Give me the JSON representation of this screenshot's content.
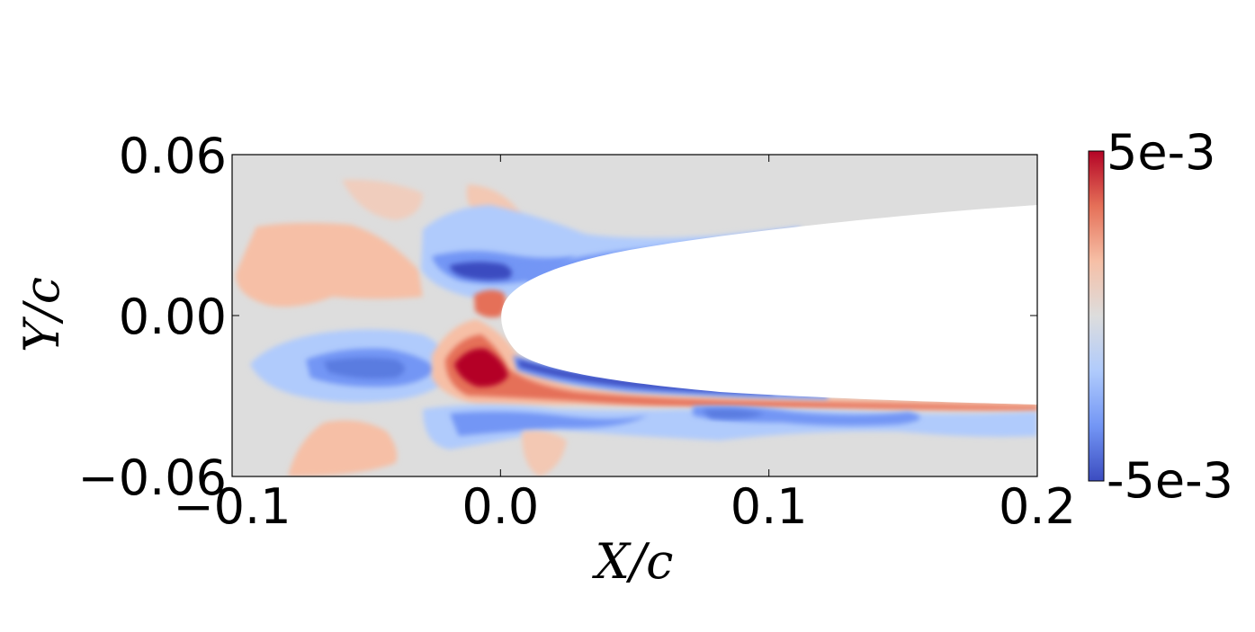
{
  "chart_data": {
    "type": "heatmap",
    "xlabel": "X/c",
    "ylabel": "Y/c",
    "xlim": [
      -0.1,
      0.2
    ],
    "ylim": [
      -0.06,
      0.06
    ],
    "x_ticks": [
      -0.1,
      0.0,
      0.1,
      0.2
    ],
    "x_tick_labels": [
      "−0.1",
      "0.0",
      "0.1",
      "0.2"
    ],
    "y_ticks": [
      0.06,
      0.0,
      -0.06
    ],
    "y_tick_labels": [
      "0.06",
      "0.00",
      "−0.06"
    ],
    "colorbar": {
      "min": -0.005,
      "max": 0.005,
      "min_label": "-5e-3",
      "max_label": "5e-3",
      "colormap": "coolwarm",
      "colors": [
        "#3b4cc0",
        "#7396f5",
        "#b0cbfc",
        "#dddddd",
        "#f6bfa6",
        "#e57058",
        "#b40426"
      ]
    },
    "background_color": "#dddddd",
    "airfoil_color": "#ffffff",
    "grid": false,
    "regions": [
      {
        "x": -0.065,
        "y": 0.02,
        "value": 0.0022
      },
      {
        "x": -0.045,
        "y": 0.022,
        "value": 0.0015
      },
      {
        "x": -0.025,
        "y": 0.025,
        "value": -0.0025
      },
      {
        "x": -0.01,
        "y": 0.016,
        "value": -0.0045
      },
      {
        "x": 0.015,
        "y": 0.028,
        "value": -0.003
      },
      {
        "x": -0.005,
        "y": 0.006,
        "value": 0.0035
      },
      {
        "x": -0.06,
        "y": -0.018,
        "value": -0.0025
      },
      {
        "x": -0.045,
        "y": -0.018,
        "value": -0.004
      },
      {
        "x": -0.008,
        "y": -0.02,
        "value": 0.005
      },
      {
        "x": 0.02,
        "y": -0.025,
        "value": -0.0045
      },
      {
        "x": 0.1,
        "y": -0.032,
        "value": 0.0035
      },
      {
        "x": 0.1,
        "y": -0.038,
        "value": -0.0035
      },
      {
        "x": 0.03,
        "y": -0.042,
        "value": -0.003
      },
      {
        "x": -0.06,
        "y": -0.05,
        "value": 0.0022
      }
    ]
  }
}
